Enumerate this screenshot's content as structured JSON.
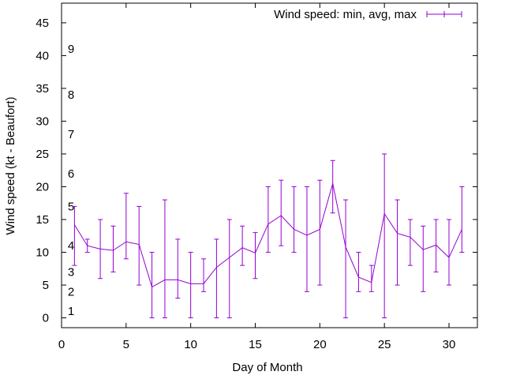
{
  "chart_data": {
    "type": "line",
    "title": "",
    "xlabel": "Day of Month",
    "ylabel": "Wind speed (kt - Beaufort)",
    "xlim": [
      0,
      32.2
    ],
    "ylim": [
      -1.5,
      48
    ],
    "x_ticks": [
      0,
      5,
      10,
      15,
      20,
      25,
      30
    ],
    "y_ticks": [
      0,
      5,
      10,
      15,
      20,
      25,
      30,
      35,
      40,
      45
    ],
    "grid": false,
    "legend": {
      "position": "top-right",
      "entries": [
        "Wind speed: min, avg, max"
      ]
    },
    "series_color": "#9400d3",
    "beaufort_labels": [
      {
        "label": "1",
        "y": 1
      },
      {
        "label": "2",
        "y": 4
      },
      {
        "label": "3",
        "y": 7
      },
      {
        "label": "4",
        "y": 11
      },
      {
        "label": "5",
        "y": 17
      },
      {
        "label": "6",
        "y": 22
      },
      {
        "label": "7",
        "y": 28
      },
      {
        "label": "8",
        "y": 34
      },
      {
        "label": "9",
        "y": 41
      }
    ],
    "series": [
      {
        "name": "Wind speed: min, avg, max",
        "x": [
          1,
          2,
          3,
          4,
          5,
          6,
          7,
          8,
          9,
          10,
          11,
          12,
          13,
          14,
          15,
          16,
          17,
          18,
          19,
          20,
          21,
          22,
          23,
          24,
          25,
          26,
          27,
          28,
          29,
          30,
          31
        ],
        "min": [
          8,
          10,
          6,
          7,
          9,
          5,
          0,
          0,
          3,
          0,
          4,
          0,
          0,
          8,
          6,
          10,
          11,
          10,
          4,
          5,
          16,
          0,
          4,
          4,
          0,
          5,
          8,
          4,
          7,
          5,
          10
        ],
        "avg": [
          14.2,
          11,
          10.5,
          10.3,
          11.6,
          11.2,
          4.7,
          5.8,
          5.8,
          5.2,
          5.2,
          7.7,
          9.2,
          10.7,
          9.9,
          14.3,
          15.6,
          13.5,
          12.6,
          13.5,
          20.5,
          10.8,
          6.2,
          5.4,
          15.9,
          12.9,
          12.3,
          10.4,
          11.1,
          9.2,
          13.5
        ],
        "max": [
          17,
          12,
          15,
          14,
          19,
          17,
          10,
          18,
          12,
          10,
          9,
          12,
          15,
          14,
          13,
          20,
          21,
          20,
          20,
          21,
          24,
          18,
          10,
          8,
          25,
          18,
          15,
          14,
          15,
          15,
          20
        ]
      }
    ]
  }
}
